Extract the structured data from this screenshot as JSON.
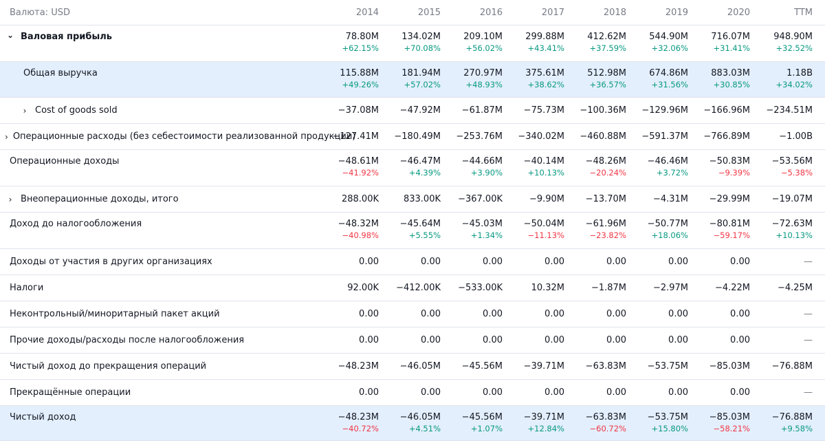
{
  "header": {
    "currency_label": "Валюта: USD",
    "periods": [
      "2014",
      "2015",
      "2016",
      "2017",
      "2018",
      "2019",
      "2020",
      "TTM"
    ]
  },
  "rows": [
    {
      "label": "Валовая прибыль",
      "expand": "down",
      "bold": true,
      "highlight": false,
      "indent": 0,
      "values": [
        "78.80M",
        "134.02M",
        "209.10M",
        "299.88M",
        "412.62M",
        "544.90M",
        "716.07M",
        "948.90M"
      ],
      "changes": [
        "+62.15%",
        "+70.08%",
        "+56.02%",
        "+43.41%",
        "+37.59%",
        "+32.06%",
        "+31.41%",
        "+32.52%"
      ]
    },
    {
      "label": "Общая выручка",
      "expand": "",
      "bold": false,
      "highlight": true,
      "indent": 1,
      "values": [
        "115.88M",
        "181.94M",
        "270.97M",
        "375.61M",
        "512.98M",
        "674.86M",
        "883.03M",
        "1.18B"
      ],
      "changes": [
        "+49.26%",
        "+57.02%",
        "+48.93%",
        "+38.62%",
        "+36.57%",
        "+31.56%",
        "+30.85%",
        "+34.02%"
      ]
    },
    {
      "label": "Cost of goods sold",
      "expand": "right",
      "bold": false,
      "highlight": false,
      "indent": 1,
      "values": [
        "−37.08M",
        "−47.92M",
        "−61.87M",
        "−75.73M",
        "−100.36M",
        "−129.96M",
        "−166.96M",
        "−234.51M"
      ],
      "changes": []
    },
    {
      "label": "Операционные расходы (без себестоимости реализованной продукции)",
      "expand": "right",
      "bold": false,
      "highlight": false,
      "indent": 0,
      "values": [
        "−127.41M",
        "−180.49M",
        "−253.76M",
        "−340.02M",
        "−460.88M",
        "−591.37M",
        "−766.89M",
        "−1.00B"
      ],
      "changes": []
    },
    {
      "label": "Операционные доходы",
      "expand": "",
      "bold": false,
      "highlight": false,
      "indent": 0,
      "values": [
        "−48.61M",
        "−46.47M",
        "−44.66M",
        "−40.14M",
        "−48.26M",
        "−46.46M",
        "−50.83M",
        "−53.56M"
      ],
      "changes": [
        "−41.92%",
        "+4.39%",
        "+3.90%",
        "+10.13%",
        "−20.24%",
        "+3.72%",
        "−9.39%",
        "−5.38%"
      ]
    },
    {
      "label": "Внеоперационные доходы, итого",
      "expand": "right",
      "bold": false,
      "highlight": false,
      "indent": 0,
      "values": [
        "288.00K",
        "833.00K",
        "−367.00K",
        "−9.90M",
        "−13.70M",
        "−4.31M",
        "−29.99M",
        "−19.07M"
      ],
      "changes": []
    },
    {
      "label": "Доход до налогообложения",
      "expand": "",
      "bold": false,
      "highlight": false,
      "indent": 0,
      "values": [
        "−48.32M",
        "−45.64M",
        "−45.03M",
        "−50.04M",
        "−61.96M",
        "−50.77M",
        "−80.81M",
        "−72.63M"
      ],
      "changes": [
        "−40.98%",
        "+5.55%",
        "+1.34%",
        "−11.13%",
        "−23.82%",
        "+18.06%",
        "−59.17%",
        "+10.13%"
      ]
    },
    {
      "label": "Доходы от участия в других организациях",
      "expand": "",
      "bold": false,
      "highlight": false,
      "indent": 0,
      "values": [
        "0.00",
        "0.00",
        "0.00",
        "0.00",
        "0.00",
        "0.00",
        "0.00",
        "—"
      ],
      "changes": []
    },
    {
      "label": "Налоги",
      "expand": "",
      "bold": false,
      "highlight": false,
      "indent": 0,
      "values": [
        "92.00K",
        "−412.00K",
        "−533.00K",
        "10.32M",
        "−1.87M",
        "−2.97M",
        "−4.22M",
        "−4.25M"
      ],
      "changes": []
    },
    {
      "label": "Неконтрольный/миноритарный пакет акций",
      "expand": "",
      "bold": false,
      "highlight": false,
      "indent": 0,
      "values": [
        "0.00",
        "0.00",
        "0.00",
        "0.00",
        "0.00",
        "0.00",
        "0.00",
        "—"
      ],
      "changes": []
    },
    {
      "label": "Прочие доходы/расходы после налогообложения",
      "expand": "",
      "bold": false,
      "highlight": false,
      "indent": 0,
      "values": [
        "0.00",
        "0.00",
        "0.00",
        "0.00",
        "0.00",
        "0.00",
        "0.00",
        "—"
      ],
      "changes": []
    },
    {
      "label": "Чистый доход до прекращения операций",
      "expand": "",
      "bold": false,
      "highlight": false,
      "indent": 0,
      "values": [
        "−48.23M",
        "−46.05M",
        "−45.56M",
        "−39.71M",
        "−63.83M",
        "−53.75M",
        "−85.03M",
        "−76.88M"
      ],
      "changes": []
    },
    {
      "label": "Прекращённые операции",
      "expand": "",
      "bold": false,
      "highlight": false,
      "indent": 0,
      "values": [
        "0.00",
        "0.00",
        "0.00",
        "0.00",
        "0.00",
        "0.00",
        "0.00",
        "—"
      ],
      "changes": []
    },
    {
      "label": "Чистый доход",
      "expand": "",
      "bold": false,
      "highlight": true,
      "indent": 0,
      "values": [
        "−48.23M",
        "−46.05M",
        "−45.56M",
        "−39.71M",
        "−63.83M",
        "−53.75M",
        "−85.03M",
        "−76.88M"
      ],
      "changes": [
        "−40.72%",
        "+4.51%",
        "+1.07%",
        "+12.84%",
        "−60.72%",
        "+15.80%",
        "−58.21%",
        "+9.58%"
      ]
    }
  ],
  "colors": {
    "positive": "#089981",
    "negative": "#f23645",
    "highlight_row": "#e3effd",
    "header_text": "#787b86"
  }
}
